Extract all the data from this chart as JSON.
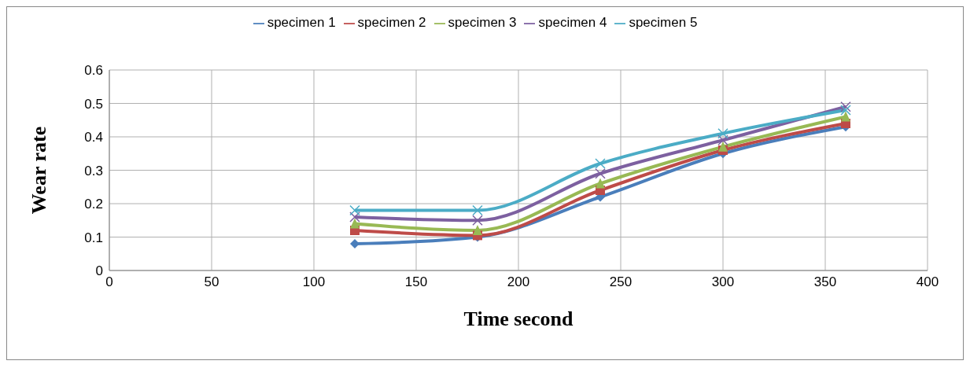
{
  "chart_data": {
    "type": "line",
    "xlabel": "Time second",
    "ylabel": "Wear rate",
    "x": [
      120,
      180,
      240,
      300,
      360
    ],
    "series": [
      {
        "name": "specimen 1",
        "color": "#4a7ebb",
        "marker": "diamond",
        "values": [
          0.08,
          0.1,
          0.22,
          0.35,
          0.43
        ]
      },
      {
        "name": "specimen 2",
        "color": "#be4b48",
        "marker": "square",
        "values": [
          0.12,
          0.105,
          0.24,
          0.36,
          0.44
        ]
      },
      {
        "name": "specimen 3",
        "color": "#98b954",
        "marker": "triangle",
        "values": [
          0.14,
          0.12,
          0.26,
          0.37,
          0.46
        ]
      },
      {
        "name": "specimen 4",
        "color": "#7d60a0",
        "marker": "cross",
        "values": [
          0.16,
          0.15,
          0.29,
          0.39,
          0.49
        ]
      },
      {
        "name": "specimen 5",
        "color": "#4bacc6",
        "marker": "cross",
        "values": [
          0.18,
          0.18,
          0.32,
          0.41,
          0.48
        ]
      }
    ],
    "xlim": [
      0,
      400
    ],
    "xticks": [
      0,
      50,
      100,
      150,
      200,
      250,
      300,
      350,
      400
    ],
    "ylim": [
      0,
      0.6
    ],
    "yticks": [
      0,
      0.1,
      0.2,
      0.3,
      0.4,
      0.5,
      0.6
    ],
    "grid": true,
    "legend": "top"
  }
}
